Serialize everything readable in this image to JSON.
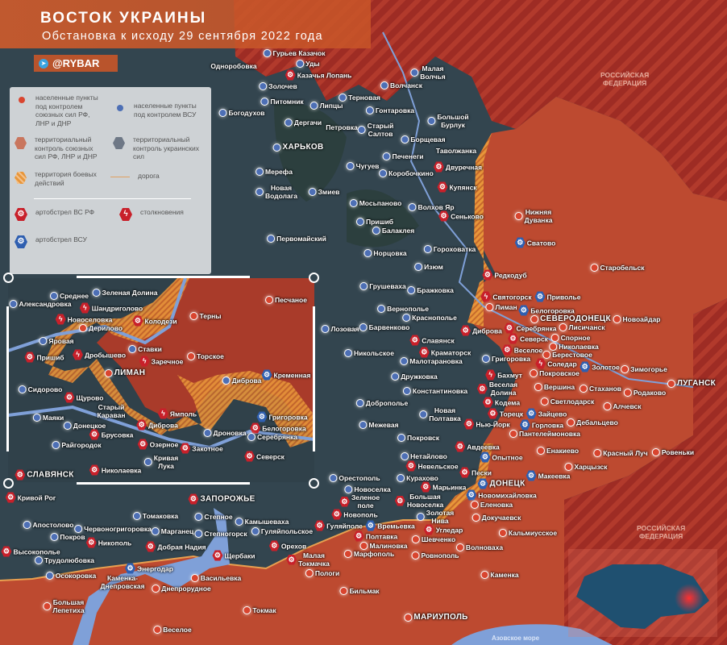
{
  "header": {
    "title": "ВОСТОК УКРАИНЫ",
    "subtitle": "Обстановка к исходу 29 сентября 2022 года",
    "channel": "@RYBAR",
    "channel_icon": "telegram-icon"
  },
  "legend": {
    "ru_towns": "населенные пункты\nпод контролем\nсоюзных сил РФ,\nЛНР и ДНР",
    "ua_towns": "населенные пункты\nпод контролем ВСУ",
    "ru_territory": "территориальный\nконтроль союзных\nсил РФ, ЛНР и ДНР",
    "ua_territory": "территориальный\nконтроль украинских\nсил",
    "combat_zone": "территория боевых\nдействий",
    "road": "дорога",
    "art_ru": "артобстрел ВС РФ",
    "clash": "столкновения",
    "art_ua": "артобстрел ВСУ"
  },
  "colors": {
    "ru_control": "#bd4a30",
    "ua_control": "#33454f",
    "russia_territory": "#9e2c24",
    "combat_zone": "#e8963a",
    "water": "#7fa0d8",
    "ru_marker": "#d9452f",
    "ua_marker": "#4d6fb5",
    "header": "#c8552a"
  },
  "regions": {
    "russia_north": "РОССИЙСКАЯ\nФЕДЕРАЦИЯ",
    "russia_east": "РОССИЙСКАЯ\nФЕДЕРАЦИЯ",
    "sea": "Азовское море"
  },
  "towns": [
    {
      "name": "Гурьев Казачок",
      "status": "ua"
    },
    {
      "name": "Одноробовка",
      "status": "none"
    },
    {
      "name": "Уды",
      "status": "ua"
    },
    {
      "name": "Казачья Лопань",
      "status": "art-ru"
    },
    {
      "name": "Золочев",
      "status": "ua"
    },
    {
      "name": "Малая\nВолчья",
      "status": "ua"
    },
    {
      "name": "Волчанск",
      "status": "ua"
    },
    {
      "name": "Питомник",
      "status": "ua"
    },
    {
      "name": "Липцы",
      "status": "ua"
    },
    {
      "name": "Терновая",
      "status": "ua"
    },
    {
      "name": "Богодухов",
      "status": "ua"
    },
    {
      "name": "Гонтаровка",
      "status": "ua"
    },
    {
      "name": "Дергачи",
      "status": "ua"
    },
    {
      "name": "Большой\nБурлук",
      "status": "ua"
    },
    {
      "name": "Петровка",
      "status": "none"
    },
    {
      "name": "Старый\nСалтов",
      "status": "ua"
    },
    {
      "name": "ХАРЬКОВ",
      "status": "ua"
    },
    {
      "name": "Борщевая",
      "status": "ua"
    },
    {
      "name": "Таволжанка",
      "status": "none"
    },
    {
      "name": "Печенеги",
      "status": "ua"
    },
    {
      "name": "Двуречная",
      "status": "art-ru"
    },
    {
      "name": "Чугуев",
      "status": "ua"
    },
    {
      "name": "Мерефа",
      "status": "ua"
    },
    {
      "name": "Коробочкино",
      "status": "ua"
    },
    {
      "name": "Купянск",
      "status": "art-ru"
    },
    {
      "name": "Новая\nВодолага",
      "status": "ua"
    },
    {
      "name": "Змиев",
      "status": "ua"
    },
    {
      "name": "Мосьпаново",
      "status": "ua"
    },
    {
      "name": "Волхов Яр",
      "status": "ua"
    },
    {
      "name": "Сеньково",
      "status": "art-ru"
    },
    {
      "name": "Пришиб",
      "status": "ua"
    },
    {
      "name": "Балаклея",
      "status": "ua"
    },
    {
      "name": "Первомайский",
      "status": "ua"
    },
    {
      "name": "Гороховатка",
      "status": "ua"
    },
    {
      "name": "Норцовка",
      "status": "ua"
    },
    {
      "name": "Изюм",
      "status": "ua"
    },
    {
      "name": "Нижняя\nДуванка",
      "status": "ru"
    },
    {
      "name": "Сватово",
      "status": "art-ua"
    },
    {
      "name": "Старобельск",
      "status": "ru"
    },
    {
      "name": "Редкодуб",
      "status": "art-ru"
    },
    {
      "name": "Святогорск",
      "status": "clash"
    },
    {
      "name": "Лиман",
      "status": "ru"
    },
    {
      "name": "Приволье",
      "status": "art-ua"
    },
    {
      "name": "Белогоровка",
      "status": "art-ua"
    },
    {
      "name": "СЕВЕРОДОНЕЦК",
      "status": "ru"
    },
    {
      "name": "Серебрянка",
      "status": "art-ru"
    },
    {
      "name": "Лисичанск",
      "status": "ru"
    },
    {
      "name": "Новоайдар",
      "status": "ru"
    },
    {
      "name": "Диброва",
      "status": "art-ru"
    },
    {
      "name": "Северск",
      "status": "art-ru"
    },
    {
      "name": "Спорное",
      "status": "ru"
    },
    {
      "name": "Николаевка",
      "status": "ru"
    },
    {
      "name": "Бражковка",
      "status": "ua"
    },
    {
      "name": "Грушеваха",
      "status": "ua"
    },
    {
      "name": "Вернополье",
      "status": "ua"
    },
    {
      "name": "Краснополье",
      "status": "ua"
    },
    {
      "name": "Славянск",
      "status": "art-ru"
    },
    {
      "name": "Лозовая",
      "status": "ua"
    },
    {
      "name": "Барвенково",
      "status": "ua"
    },
    {
      "name": "Никольское",
      "status": "ua"
    },
    {
      "name": "Краматорск",
      "status": "art-ru"
    },
    {
      "name": "Малотарановка",
      "status": "ua"
    },
    {
      "name": "Веселое",
      "status": "art-ru"
    },
    {
      "name": "Григоровка",
      "status": "ua"
    },
    {
      "name": "Берестовое",
      "status": "ru"
    },
    {
      "name": "Соледар",
      "status": "clash"
    },
    {
      "name": "Золотое",
      "status": "art-ua"
    },
    {
      "name": "Зимогорье",
      "status": "ru"
    },
    {
      "name": "ЛУГАНСК",
      "status": "ru"
    },
    {
      "name": "Родаково",
      "status": "ru"
    },
    {
      "name": "Покровское",
      "status": "ru"
    },
    {
      "name": "Бахмут",
      "status": "clash"
    },
    {
      "name": "Веселая\nДолина",
      "status": "art-ru"
    },
    {
      "name": "Вершина",
      "status": "ru"
    },
    {
      "name": "Стаханов",
      "status": "ru"
    },
    {
      "name": "Алчевск",
      "status": "ru"
    },
    {
      "name": "Дружковка",
      "status": "ua"
    },
    {
      "name": "Константиновка",
      "status": "ua"
    },
    {
      "name": "Кодема",
      "status": "art-ru"
    },
    {
      "name": "Светлодарск",
      "status": "ru"
    },
    {
      "name": "Торецк",
      "status": "art-ru"
    },
    {
      "name": "Зайцево",
      "status": "art-ua"
    },
    {
      "name": "Горловка",
      "status": "art-ua"
    },
    {
      "name": "Дебальцево",
      "status": "ru"
    },
    {
      "name": "Пантелеймоновка",
      "status": "ru"
    },
    {
      "name": "Доброполье",
      "status": "ua"
    },
    {
      "name": "Новая\nПолтавка",
      "status": "ua"
    },
    {
      "name": "Нью-Йорк",
      "status": "art-ru"
    },
    {
      "name": "Межевая",
      "status": "ua"
    },
    {
      "name": "Покровск",
      "status": "ua"
    },
    {
      "name": "Енакиево",
      "status": "ru"
    },
    {
      "name": "Красный Луч",
      "status": "ru"
    },
    {
      "name": "Ровеньки",
      "status": "ru"
    },
    {
      "name": "Авдеевка",
      "status": "art-ru"
    },
    {
      "name": "Нетайлово",
      "status": "ua"
    },
    {
      "name": "Опытное",
      "status": "art-ua"
    },
    {
      "name": "Невельское",
      "status": "art-ru"
    },
    {
      "name": "Харцызск",
      "status": "ru"
    },
    {
      "name": "Пески",
      "status": "art-ru"
    },
    {
      "name": "Макеевка",
      "status": "art-ua"
    },
    {
      "name": "Курахово",
      "status": "ua"
    },
    {
      "name": "ДОНЕЦК",
      "status": "art-ua"
    },
    {
      "name": "Марьинка",
      "status": "art-ru"
    },
    {
      "name": "Новомихайловка",
      "status": "art-ua"
    },
    {
      "name": "Орестополь",
      "status": "ua"
    },
    {
      "name": "Новоселка",
      "status": "ua"
    },
    {
      "name": "Большая\nНовоселка",
      "status": "art-ru"
    },
    {
      "name": "Зеленое\nполе",
      "status": "art-ru"
    },
    {
      "name": "Золотая\nНива",
      "status": "ua"
    },
    {
      "name": "Времьевка",
      "status": "art-ua"
    },
    {
      "name": "Новополь",
      "status": "art-ru"
    },
    {
      "name": "Еленовка",
      "status": "ru"
    },
    {
      "name": "Угледар",
      "status": "art-ru"
    },
    {
      "name": "Докучаевск",
      "status": "ru"
    },
    {
      "name": "Полтавка",
      "status": "art-ru"
    },
    {
      "name": "Гуляйполе",
      "status": "art-ru"
    },
    {
      "name": "Малиновка",
      "status": "ru"
    },
    {
      "name": "Шевченко",
      "status": "ru"
    },
    {
      "name": "Кальмиусское",
      "status": "ru"
    },
    {
      "name": "Марфополь",
      "status": "ru"
    },
    {
      "name": "Волноваха",
      "status": "ru"
    },
    {
      "name": "Ровнополь",
      "status": "ru"
    },
    {
      "name": "Каменка",
      "status": "ru"
    },
    {
      "name": "Бильмак",
      "status": "ru"
    },
    {
      "name": "МАРИУПОЛЬ",
      "status": "ru"
    },
    {
      "name": "Кривой Рог",
      "status": "art-ru"
    },
    {
      "name": "ЗАПОРОЖЬЕ",
      "status": "art-ru"
    },
    {
      "name": "Томаковка",
      "status": "ua"
    },
    {
      "name": "Степное",
      "status": "ua"
    },
    {
      "name": "Апостолово",
      "status": "ua"
    },
    {
      "name": "Камышеваха",
      "status": "ua"
    },
    {
      "name": "Червоногригоровка",
      "status": "ua"
    },
    {
      "name": "Марганец",
      "status": "ua"
    },
    {
      "name": "Покров",
      "status": "ua"
    },
    {
      "name": "Степногорск",
      "status": "ua"
    },
    {
      "name": "Гуляйпольское",
      "status": "ua"
    },
    {
      "name": "Никополь",
      "status": "art-ru"
    },
    {
      "name": "Добрая Надия",
      "status": "art-ru"
    },
    {
      "name": "Орехов",
      "status": "art-ru"
    },
    {
      "name": "Малая\nТокмачка",
      "status": "art-ru"
    },
    {
      "name": "Высокополье",
      "status": "art-ru"
    },
    {
      "name": "Щербаки",
      "status": "art-ru"
    },
    {
      "name": "Трудолюбовка",
      "status": "ua"
    },
    {
      "name": "Энергодар",
      "status": "art-ua"
    },
    {
      "name": "Осокоровка",
      "status": "ua"
    },
    {
      "name": "Каменка-\nДнепровская",
      "status": "none"
    },
    {
      "name": "Васильевка",
      "status": "ru"
    },
    {
      "name": "Пологи",
      "status": "ru"
    },
    {
      "name": "Днепрорудное",
      "status": "ru"
    },
    {
      "name": "Большая\nЛепетиха",
      "status": "ru"
    },
    {
      "name": "Токмак",
      "status": "ru"
    },
    {
      "name": "Веселое",
      "status": "ru"
    }
  ],
  "inset": {
    "towns": [
      {
        "name": "Александровка",
        "status": "ua"
      },
      {
        "name": "Среднее",
        "status": "ua"
      },
      {
        "name": "Зеленая Долина",
        "status": "ua"
      },
      {
        "name": "Шандриголово",
        "status": "clash"
      },
      {
        "name": "Новоселовка",
        "status": "clash"
      },
      {
        "name": "Колодези",
        "status": "art-ru"
      },
      {
        "name": "Терны",
        "status": "ru"
      },
      {
        "name": "Песчаное",
        "status": "ru"
      },
      {
        "name": "Дерилово",
        "status": "ru"
      },
      {
        "name": "Яровая",
        "status": "ua"
      },
      {
        "name": "Ставки",
        "status": "ua"
      },
      {
        "name": "Дробышево",
        "status": "clash"
      },
      {
        "name": "Торское",
        "status": "ru"
      },
      {
        "name": "Заречное",
        "status": "clash"
      },
      {
        "name": "Пришиб",
        "status": "art-ru"
      },
      {
        "name": "Кременная",
        "status": "art-ua"
      },
      {
        "name": "ЛИМАН",
        "status": "ru"
      },
      {
        "name": "Диброва",
        "status": "ua"
      },
      {
        "name": "Сидорово",
        "status": "ua"
      },
      {
        "name": "Щурово",
        "status": "art-ru"
      },
      {
        "name": "Старый\nКараван",
        "status": "none"
      },
      {
        "name": "Ямполь",
        "status": "clash"
      },
      {
        "name": "Григоровка",
        "status": "art-ua"
      },
      {
        "name": "Маяки",
        "status": "ua"
      },
      {
        "name": "Донецкое",
        "status": "ua"
      },
      {
        "name": "Диброва",
        "status": "art-ru"
      },
      {
        "name": "Белогоровка",
        "status": "art-ru"
      },
      {
        "name": "Брусовка",
        "status": "art-ru"
      },
      {
        "name": "Дроновка",
        "status": "ua"
      },
      {
        "name": "Серебрянка",
        "status": "ua"
      },
      {
        "name": "Райгородок",
        "status": "ua"
      },
      {
        "name": "Озерное",
        "status": "art-ru"
      },
      {
        "name": "Закотное",
        "status": "art-ru"
      },
      {
        "name": "Северск",
        "status": "art-ru"
      },
      {
        "name": "Кривая\nЛука",
        "status": "ua"
      },
      {
        "name": "Николаевка",
        "status": "art-ru"
      },
      {
        "name": "СЛАВЯНСК",
        "status": "art-ru"
      }
    ]
  }
}
